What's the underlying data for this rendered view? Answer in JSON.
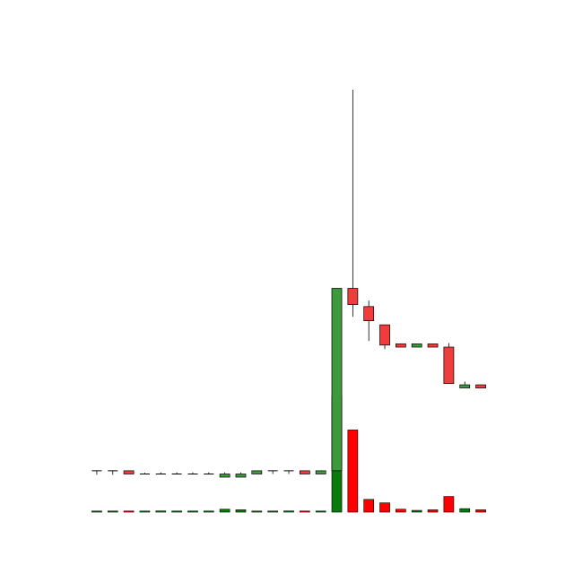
{
  "chart_data": {
    "type": "candlestick",
    "title": "",
    "xlabel": "",
    "ylabel": "",
    "axes_visible": false,
    "grid": false,
    "legend": "none",
    "colors": {
      "up_body": "#3c9a3c",
      "down_body": "#f03c3c",
      "up_volume": "#0a7a0a",
      "down_volume": "#ff0000",
      "wick": "#000000",
      "background": "#ffffff"
    },
    "price_range": [
      0,
      100
    ],
    "volume_range": [
      0,
      100
    ],
    "candles": [
      {
        "open": 6.0,
        "high": 6.0,
        "low": 5.0,
        "close": 6.0,
        "volume": 0.7
      },
      {
        "open": 6.0,
        "high": 6.0,
        "low": 5.0,
        "close": 6.0,
        "volume": 0.7
      },
      {
        "open": 6.0,
        "high": 6.0,
        "low": 5.2,
        "close": 5.2,
        "volume": 0.8
      },
      {
        "open": 5.2,
        "high": 5.5,
        "low": 5.2,
        "close": 5.2,
        "volume": 0.7
      },
      {
        "open": 5.2,
        "high": 5.6,
        "low": 5.2,
        "close": 5.2,
        "volume": 1.0
      },
      {
        "open": 5.2,
        "high": 5.6,
        "low": 5.2,
        "close": 5.2,
        "volume": 0.7
      },
      {
        "open": 5.2,
        "high": 5.6,
        "low": 5.2,
        "close": 5.2,
        "volume": 0.7
      },
      {
        "open": 5.2,
        "high": 5.6,
        "low": 5.2,
        "close": 5.2,
        "volume": 0.7
      },
      {
        "open": 5.2,
        "high": 5.6,
        "low": 5.2,
        "close": 5.2,
        "volume": 2.5
      },
      {
        "open": 5.2,
        "high": 5.6,
        "low": 5.2,
        "close": 5.2,
        "volume": 2.0
      },
      {
        "open": 5.2,
        "high": 6.0,
        "low": 5.2,
        "close": 6.0,
        "volume": 0.7
      },
      {
        "open": 6.0,
        "high": 6.0,
        "low": 5.2,
        "close": 6.0,
        "volume": 0.7
      },
      {
        "open": 6.0,
        "high": 6.0,
        "low": 5.2,
        "close": 6.0,
        "volume": 1.0
      },
      {
        "open": 6.0,
        "high": 6.0,
        "low": 5.2,
        "close": 5.2,
        "volume": 0.7
      },
      {
        "open": 5.2,
        "high": 6.0,
        "low": 5.2,
        "close": 6.0,
        "volume": 0.7
      },
      {
        "open": 6.0,
        "high": 51.0,
        "low": 6.0,
        "close": 51.0,
        "volume": 100.0
      },
      {
        "open": 51.0,
        "high": 100.0,
        "low": 44.0,
        "close": 47.0,
        "volume": 71.0
      },
      {
        "open": 46.5,
        "high": 48.0,
        "low": 38.0,
        "close": 43.0,
        "volume": 11.0
      },
      {
        "open": 42.0,
        "high": 42.0,
        "low": 36.0,
        "close": 37.0,
        "volume": 8.0
      },
      {
        "open": 37.3,
        "high": 37.3,
        "low": 36.5,
        "close": 36.5,
        "volume": 2.5
      },
      {
        "open": 36.5,
        "high": 37.3,
        "low": 36.5,
        "close": 37.3,
        "volume": 1.5
      },
      {
        "open": 37.3,
        "high": 37.3,
        "low": 36.5,
        "close": 36.5,
        "volume": 2.0
      },
      {
        "open": 36.5,
        "high": 37.5,
        "low": 27.5,
        "close": 27.5,
        "volume": 13.5
      },
      {
        "open": 27.2,
        "high": 28.0,
        "low": 26.5,
        "close": 27.2,
        "volume": 3.0
      },
      {
        "open": 27.2,
        "high": 27.2,
        "low": 26.4,
        "close": 26.4,
        "volume": 2.0
      }
    ]
  }
}
